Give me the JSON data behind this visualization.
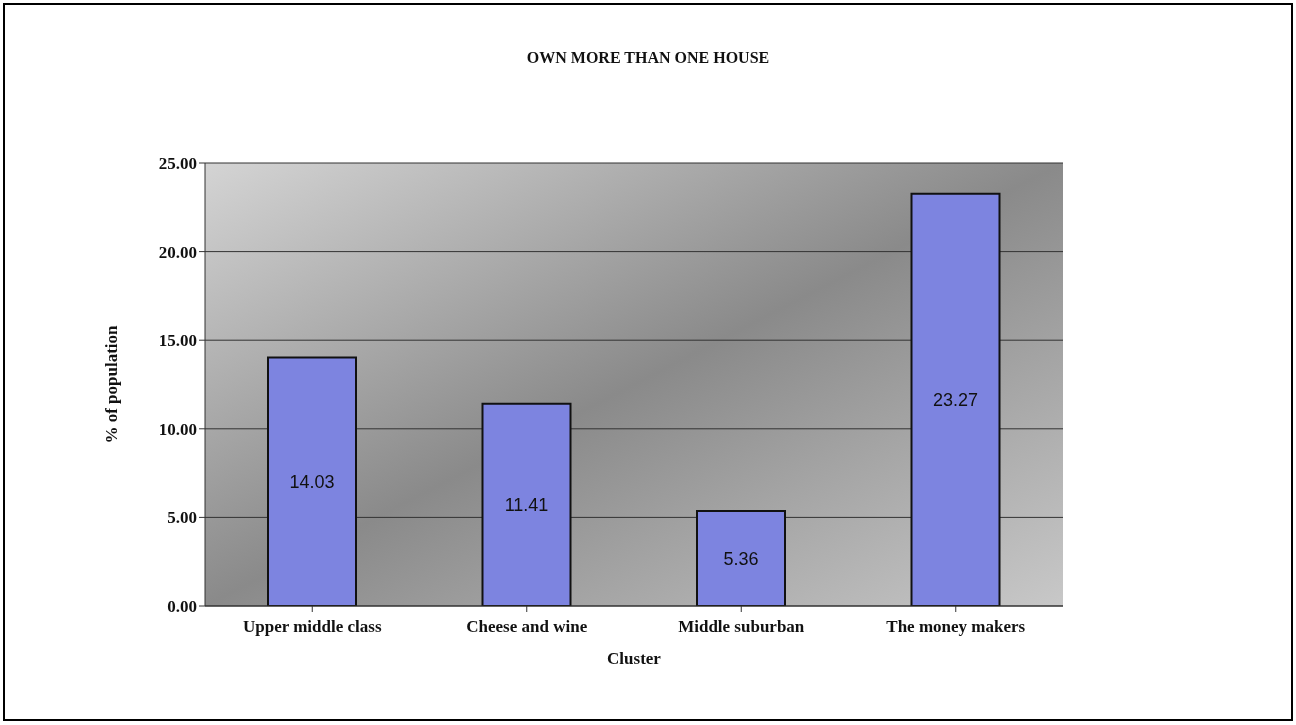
{
  "chart_data": {
    "type": "bar",
    "title": "OWN MORE THAN ONE HOUSE",
    "xlabel": "Cluster",
    "ylabel": "% of population",
    "categories": [
      "Upper middle class",
      "Cheese and wine",
      "Middle suburban",
      "The money makers"
    ],
    "values": [
      14.03,
      11.41,
      5.36,
      23.27
    ],
    "color": "#7d84e0",
    "ylim": [
      0,
      25
    ],
    "yticks": [
      {
        "value": 0,
        "label": "0.00"
      },
      {
        "value": 5,
        "label": "5.00"
      },
      {
        "value": 10,
        "label": "10.00"
      },
      {
        "value": 15,
        "label": "15.00"
      },
      {
        "value": 20,
        "label": "20.00"
      },
      {
        "value": 25,
        "label": "25.00"
      }
    ],
    "grid": "y",
    "data_labels": true
  }
}
